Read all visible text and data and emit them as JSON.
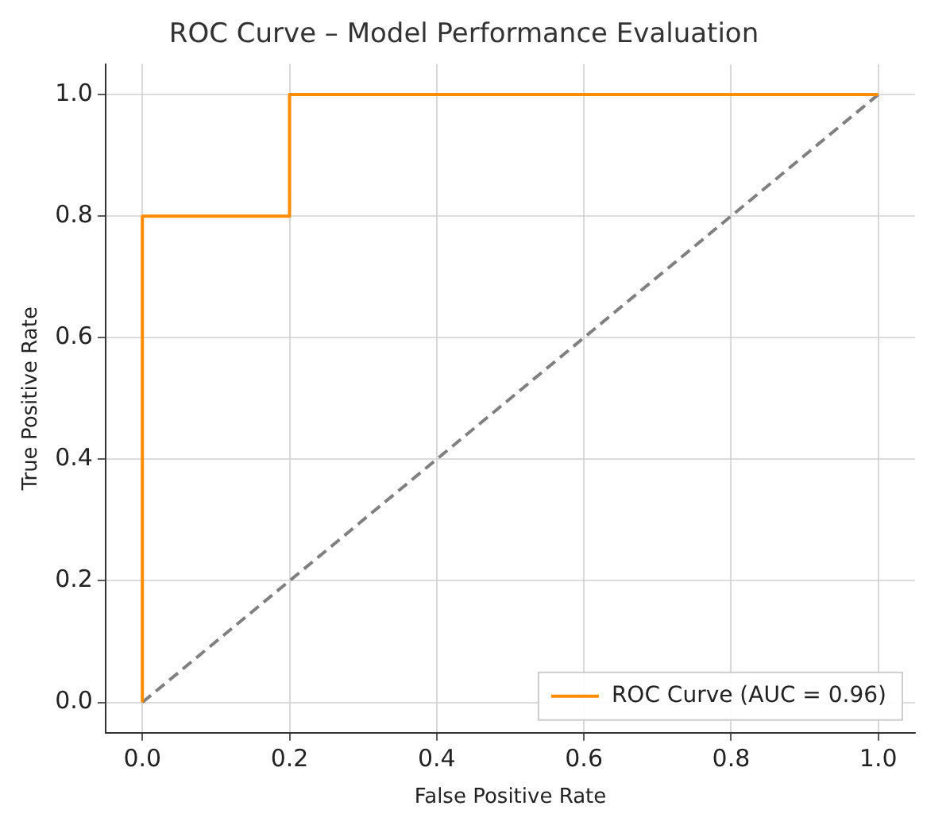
{
  "chart_data": {
    "type": "line",
    "title": "ROC Curve – Model Performance Evaluation",
    "xlabel": "False Positive Rate",
    "ylabel": "True Positive Rate",
    "series": [
      {
        "name": "ROC Curve (AUC = 0.96)",
        "color": "#ff8c00",
        "x": [
          0,
          0,
          0.2,
          0.2,
          1
        ],
        "values": [
          0,
          0.8,
          0.8,
          1,
          1
        ]
      },
      {
        "color": "#808080",
        "x": [
          0,
          1
        ],
        "values": [
          0,
          1
        ],
        "line_style": "dashed"
      }
    ],
    "xlim": [
      -0.05,
      1.05
    ],
    "ylim": [
      -0.05,
      1.05
    ],
    "xticks": [
      {
        "value": 0,
        "label": "0.0"
      },
      {
        "value": 0.2,
        "label": "0.2"
      },
      {
        "value": 0.4,
        "label": "0.4"
      },
      {
        "value": 0.6,
        "label": "0.6"
      },
      {
        "value": 0.8,
        "label": "0.8"
      },
      {
        "value": 1,
        "label": "1.0"
      }
    ],
    "yticks": [
      {
        "value": 0,
        "label": "0.0"
      },
      {
        "value": 0.2,
        "label": "0.2"
      },
      {
        "value": 0.4,
        "label": "0.4"
      },
      {
        "value": 0.6,
        "label": "0.6"
      },
      {
        "value": 0.8,
        "label": "0.8"
      },
      {
        "value": 1,
        "label": "1.0"
      }
    ],
    "grid": true,
    "legend": "bottom right"
  }
}
